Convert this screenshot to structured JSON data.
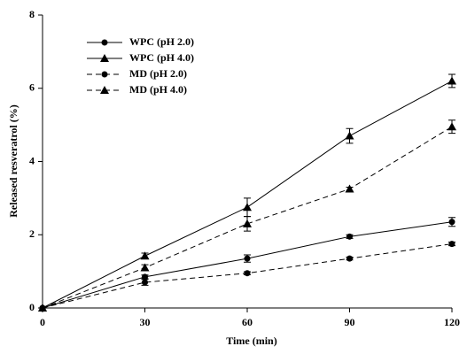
{
  "chart_data": {
    "type": "line",
    "x_label": "Time (min)",
    "y_label": "Released resveratrol (%)",
    "x": [
      0,
      30,
      60,
      90,
      120
    ],
    "xlim": [
      0,
      120
    ],
    "xticks": [
      0,
      30,
      60,
      90,
      120
    ],
    "ylim": [
      0,
      8
    ],
    "yticks": [
      0,
      2,
      4,
      6,
      8
    ],
    "legend": "upper left",
    "series": [
      {
        "name": "WPC (pH 2.0)",
        "color": "#000000",
        "marker": "circle",
        "linestyle": "solid",
        "values": [
          0,
          0.85,
          1.35,
          1.95,
          2.35
        ],
        "errors": [
          0,
          0.05,
          0.1,
          0.05,
          0.12
        ]
      },
      {
        "name": "WPC (pH 4.0)",
        "color": "#000000",
        "marker": "triangle",
        "linestyle": "solid",
        "values": [
          0,
          1.42,
          2.75,
          4.7,
          6.2
        ],
        "errors": [
          0,
          0.08,
          0.25,
          0.2,
          0.18
        ]
      },
      {
        "name": "MD (pH 2.0)",
        "color": "#000000",
        "marker": "circle",
        "linestyle": "dashed",
        "values": [
          0,
          0.7,
          0.95,
          1.35,
          1.75
        ],
        "errors": [
          0,
          0.08,
          0.04,
          0.04,
          0.05
        ]
      },
      {
        "name": "MD (pH 4.0)",
        "color": "#000000",
        "marker": "triangle",
        "linestyle": "dashed",
        "values": [
          0,
          1.1,
          2.3,
          3.25,
          4.95
        ],
        "errors": [
          0,
          0.08,
          0.2,
          0.05,
          0.18
        ]
      }
    ]
  }
}
